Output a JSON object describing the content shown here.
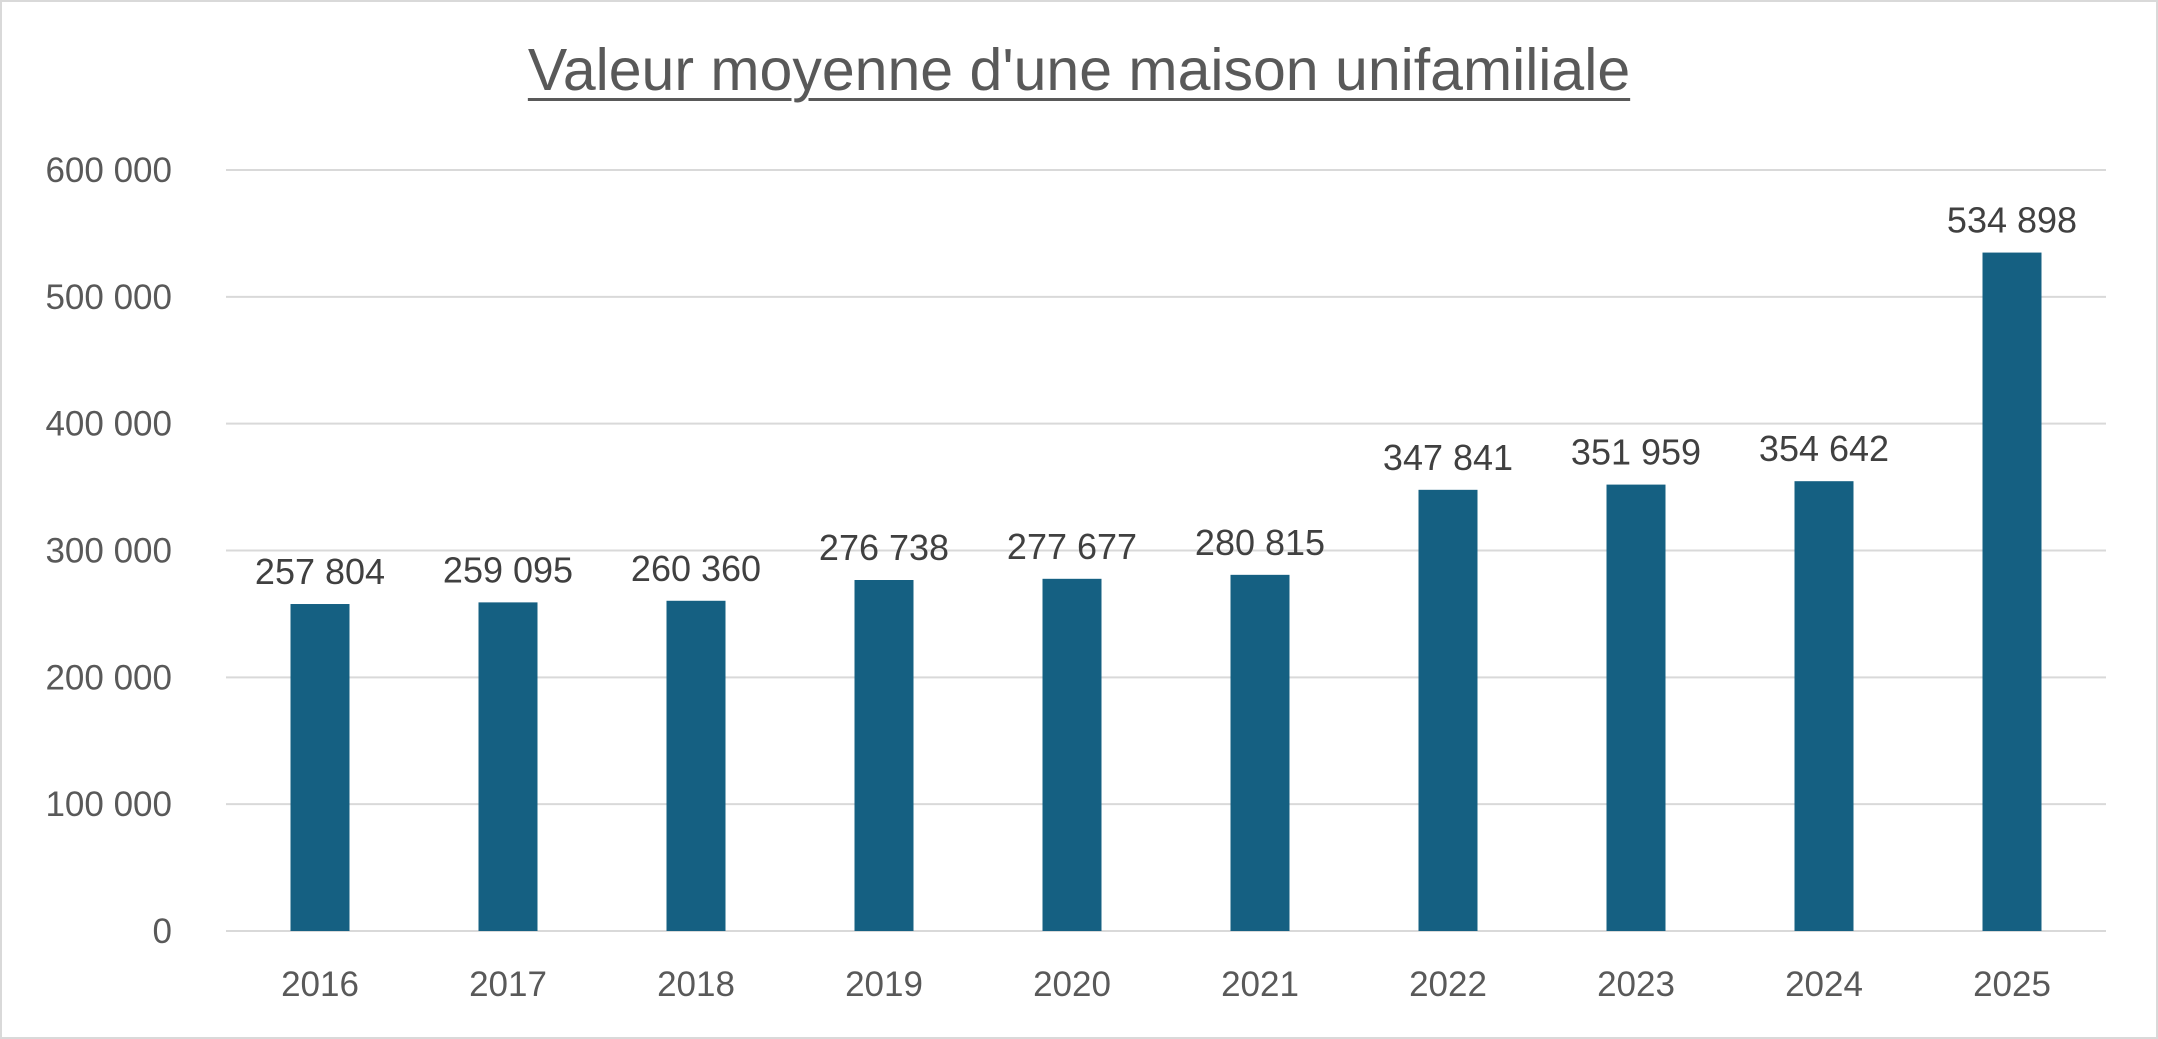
{
  "chart_data": {
    "type": "bar",
    "title": "Valeur moyenne d'une maison unifamiliale",
    "xlabel": "",
    "ylabel": "",
    "categories": [
      "2016",
      "2017",
      "2018",
      "2019",
      "2020",
      "2021",
      "2022",
      "2023",
      "2024",
      "2025"
    ],
    "values": [
      257804,
      259095,
      260360,
      276738,
      277677,
      280815,
      347841,
      351959,
      354642,
      534898
    ],
    "value_labels": [
      "257 804",
      "259 095",
      "260 360",
      "276 738",
      "277 677",
      "280 815",
      "347 841",
      "351 959",
      "354 642",
      "534 898"
    ],
    "ylim": [
      0,
      600000
    ],
    "yticks": [
      0,
      100000,
      200000,
      300000,
      400000,
      500000,
      600000
    ],
    "ytick_labels": [
      "0",
      "100 000",
      "200 000",
      "300 000",
      "400 000",
      "500 000",
      "600 000"
    ],
    "grid": true,
    "legend": "none",
    "colors": {
      "bar": "#156082",
      "grid": "#d9d9d9",
      "axis_text": "#595959",
      "label_text": "#404040"
    }
  }
}
